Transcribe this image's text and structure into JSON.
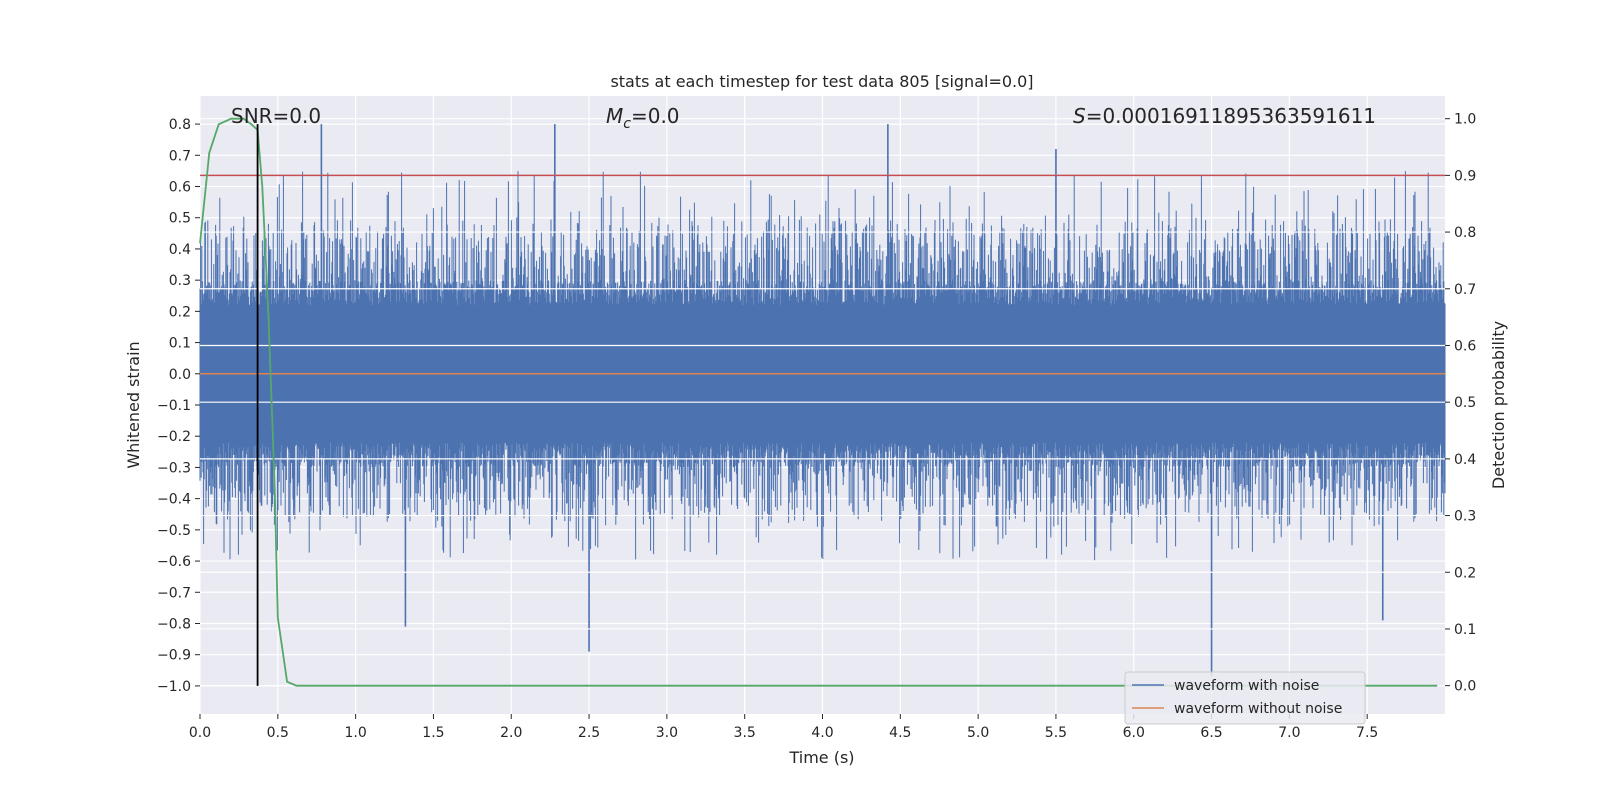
{
  "chart_data": {
    "type": "line",
    "title": "stats at each timestep for test data 805 [signal=0.0]",
    "xlabel": "Time (s)",
    "ylabel": "Whitened strain",
    "y2label": "Detection probability",
    "xlim": [
      0.0,
      8.0
    ],
    "ylim": [
      -1.09,
      0.89
    ],
    "y2lim": [
      -0.05,
      1.04
    ],
    "x_ticks": [
      "0.0",
      "0.5",
      "1.0",
      "1.5",
      "2.0",
      "2.5",
      "3.0",
      "3.5",
      "4.0",
      "4.5",
      "5.0",
      "5.5",
      "6.0",
      "6.5",
      "7.0",
      "7.5"
    ],
    "y_ticks": [
      "0.8",
      "0.7",
      "0.6",
      "0.5",
      "0.4",
      "0.3",
      "0.2",
      "0.1",
      "0.0",
      "−0.1",
      "−0.2",
      "−0.3",
      "−0.4",
      "−0.5",
      "−0.6",
      "−0.7",
      "−0.8",
      "−0.9",
      "−1.0"
    ],
    "y2_ticks": [
      "1.0",
      "0.9",
      "0.8",
      "0.7",
      "0.6",
      "0.5",
      "0.4",
      "0.3",
      "0.2",
      "0.1",
      "0.0"
    ],
    "grid": true,
    "legend_position": "lower-right",
    "annotations": {
      "snr": "SNR=0.0",
      "mc_symbol": "M",
      "mc_sub": "c",
      "mc_value": "=0.0",
      "s_symbol": "S",
      "s_value": "=0.00016911895363591611"
    },
    "series": [
      {
        "name": "waveform with noise",
        "color": "#4c72b0",
        "description": "dense noise, amplitude mostly within ±0.3 with spikes to ~0.8 and ~-0.97",
        "spikes": [
          {
            "x": 0.78,
            "y": 0.8
          },
          {
            "x": 2.28,
            "y": 0.8
          },
          {
            "x": 4.42,
            "y": 0.8
          },
          {
            "x": 1.32,
            "y": -0.81
          },
          {
            "x": 2.5,
            "y": -0.89
          },
          {
            "x": 6.5,
            "y": -0.97
          },
          {
            "x": 7.6,
            "y": -0.79
          },
          {
            "x": 5.5,
            "y": 0.72
          }
        ]
      },
      {
        "name": "waveform without noise",
        "color": "#dd8452",
        "x": [
          0.0,
          8.0
        ],
        "y": [
          0.0,
          0.0
        ]
      },
      {
        "color": "#55a868",
        "axis": "y2",
        "x": [
          0.0,
          0.06,
          0.12,
          0.2,
          0.28,
          0.33,
          0.37,
          0.4,
          0.44,
          0.48,
          0.5,
          0.56,
          0.62,
          0.7,
          7.95
        ],
        "y": [
          0.78,
          0.94,
          0.99,
          1.0,
          1.0,
          0.99,
          0.98,
          0.88,
          0.65,
          0.35,
          0.12,
          0.007,
          0.0,
          0.0,
          0.0
        ]
      }
    ],
    "threshold": {
      "axis": "y2",
      "value": 0.9,
      "color": "#c44e52"
    },
    "marker_line": {
      "x": 0.37,
      "color": "#000000"
    }
  }
}
